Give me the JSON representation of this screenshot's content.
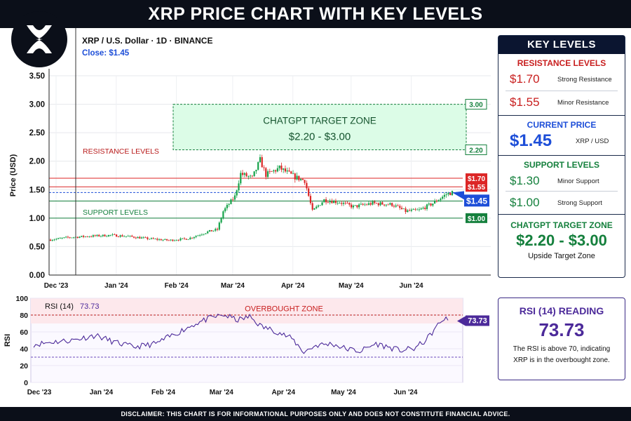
{
  "header": {
    "title": "XRP PRICE CHART WITH KEY LEVELS",
    "logo_icon": "xrp-logo-icon"
  },
  "chart_info": {
    "symbol_line": "XRP / U.S. Dollar · 1D · BINANCE",
    "close_line": "Close: $1.45"
  },
  "colors": {
    "bull": "#16a34a",
    "bear": "#dc2626",
    "resistance": "#dc2626",
    "support": "#15803d",
    "current": "#1d4ed8",
    "rsi": "#4c2a9a",
    "target_fill": "#dcfce7",
    "navy": "#0b1530"
  },
  "chart_data": [
    {
      "type": "candlestick",
      "ylabel": "Price (USD)",
      "ylim": [
        0,
        3.5
      ],
      "yticks": [
        "0.00",
        "0.50",
        "1.00",
        "1.50",
        "2.00",
        "2.50",
        "3.00",
        "3.50"
      ],
      "xticks": [
        "Dec '23",
        "Jan '24",
        "Feb '24",
        "Mar '24",
        "Apr '24",
        "May '24",
        "Jun '24"
      ],
      "x_range": [
        "2023-12-01",
        "2024-06-25"
      ],
      "grid": true,
      "price_path": [
        {
          "date": "2023-12-01",
          "price": 0.62
        },
        {
          "date": "2023-12-10",
          "price": 0.66
        },
        {
          "date": "2023-12-20",
          "price": 0.68
        },
        {
          "date": "2024-01-01",
          "price": 0.7
        },
        {
          "date": "2024-01-10",
          "price": 0.68
        },
        {
          "date": "2024-01-20",
          "price": 0.64
        },
        {
          "date": "2024-01-31",
          "price": 0.61
        },
        {
          "date": "2024-02-10",
          "price": 0.64
        },
        {
          "date": "2024-02-20",
          "price": 0.76
        },
        {
          "date": "2024-02-25",
          "price": 0.8
        },
        {
          "date": "2024-02-28",
          "price": 1.12
        },
        {
          "date": "2024-03-05",
          "price": 1.38
        },
        {
          "date": "2024-03-08",
          "price": 1.78
        },
        {
          "date": "2024-03-14",
          "price": 1.7
        },
        {
          "date": "2024-03-18",
          "price": 2.02
        },
        {
          "date": "2024-03-21",
          "price": 1.76
        },
        {
          "date": "2024-03-28",
          "price": 1.88
        },
        {
          "date": "2024-04-05",
          "price": 1.72
        },
        {
          "date": "2024-04-10",
          "price": 1.66
        },
        {
          "date": "2024-04-14",
          "price": 1.12
        },
        {
          "date": "2024-04-20",
          "price": 1.32
        },
        {
          "date": "2024-04-28",
          "price": 1.28
        },
        {
          "date": "2024-05-05",
          "price": 1.2
        },
        {
          "date": "2024-05-15",
          "price": 1.26
        },
        {
          "date": "2024-05-25",
          "price": 1.24
        },
        {
          "date": "2024-06-01",
          "price": 1.12
        },
        {
          "date": "2024-06-08",
          "price": 1.14
        },
        {
          "date": "2024-06-15",
          "price": 1.26
        },
        {
          "date": "2024-06-22",
          "price": 1.42
        },
        {
          "date": "2024-06-25",
          "price": 1.45
        }
      ],
      "lines": [
        {
          "name": "Strong Resistance",
          "value": 1.7,
          "label": "$1.70"
        },
        {
          "name": "Minor Resistance",
          "value": 1.55,
          "label": "$1.55"
        },
        {
          "name": "Current Price",
          "value": 1.45,
          "label": "$1.45"
        },
        {
          "name": "Minor Support",
          "value": 1.3
        },
        {
          "name": "Strong Support",
          "value": 1.0,
          "label": "$1.00"
        }
      ],
      "target_zone": {
        "low": 2.2,
        "high": 3.0,
        "title": "CHATGPT TARGET ZONE",
        "range": "$2.20 - $3.00",
        "low_label": "2.20",
        "high_label": "3.00"
      },
      "annotations": {
        "resistance": "RESISTANCE LEVELS",
        "support": "SUPPORT LEVELS"
      }
    },
    {
      "type": "line",
      "title": "RSI (14)",
      "value_label": "73.73",
      "ylabel": "RSI",
      "ylim": [
        0,
        100
      ],
      "yticks": [
        "0",
        "20",
        "40",
        "60",
        "80",
        "100"
      ],
      "overbought": {
        "from": 70,
        "to": 100,
        "label": "OVERBOUGHT ZONE"
      },
      "oversold_line": 30,
      "xticks": [
        "Dec '23",
        "Jan '24",
        "Feb '24",
        "Mar '24",
        "Apr '24",
        "May '24",
        "Jun '24"
      ],
      "rsi_path": [
        {
          "date": "2023-12-01",
          "rsi": 45
        },
        {
          "date": "2023-12-10",
          "rsi": 48
        },
        {
          "date": "2023-12-20",
          "rsi": 50
        },
        {
          "date": "2024-01-01",
          "rsi": 56
        },
        {
          "date": "2024-01-10",
          "rsi": 48
        },
        {
          "date": "2024-01-20",
          "rsi": 42
        },
        {
          "date": "2024-01-31",
          "rsi": 46
        },
        {
          "date": "2024-02-10",
          "rsi": 58
        },
        {
          "date": "2024-02-20",
          "rsi": 70
        },
        {
          "date": "2024-02-28",
          "rsi": 77
        },
        {
          "date": "2024-03-05",
          "rsi": 80
        },
        {
          "date": "2024-03-12",
          "rsi": 74
        },
        {
          "date": "2024-03-18",
          "rsi": 78
        },
        {
          "date": "2024-03-24",
          "rsi": 66
        },
        {
          "date": "2024-03-30",
          "rsi": 62
        },
        {
          "date": "2024-04-08",
          "rsi": 52
        },
        {
          "date": "2024-04-14",
          "rsi": 36
        },
        {
          "date": "2024-04-20",
          "rsi": 44
        },
        {
          "date": "2024-04-28",
          "rsi": 46
        },
        {
          "date": "2024-05-05",
          "rsi": 40
        },
        {
          "date": "2024-05-12",
          "rsi": 37
        },
        {
          "date": "2024-05-20",
          "rsi": 46
        },
        {
          "date": "2024-05-26",
          "rsi": 42
        },
        {
          "date": "2024-06-01",
          "rsi": 38
        },
        {
          "date": "2024-06-08",
          "rsi": 40
        },
        {
          "date": "2024-06-14",
          "rsi": 50
        },
        {
          "date": "2024-06-20",
          "rsi": 68
        },
        {
          "date": "2024-06-23",
          "rsi": 76
        },
        {
          "date": "2024-06-25",
          "rsi": 73.73
        }
      ]
    }
  ],
  "key_levels": {
    "title": "KEY LEVELS",
    "resistance_title": "RESISTANCE LEVELS",
    "resistance": [
      {
        "value": "$1.70",
        "desc": "Strong Resistance"
      },
      {
        "value": "$1.55",
        "desc": "Minor Resistance"
      }
    ],
    "current_title": "CURRENT PRICE",
    "current_value": "$1.45",
    "current_pair": "XRP / USD",
    "support_title": "SUPPORT LEVELS",
    "support": [
      {
        "value": "$1.30",
        "desc": "Minor Support"
      },
      {
        "value": "$1.00",
        "desc": "Strong Support"
      }
    ],
    "target_title": "CHATGPT TARGET ZONE",
    "target_value": "$2.20 - $3.00",
    "target_desc": "Upside Target Zone"
  },
  "rsi_box": {
    "title": "RSI (14) READING",
    "value": "73.73",
    "line1": "The RSI is above 70, indicating",
    "line2": "XRP is in the overbought zone."
  },
  "disclaimer": "DISCLAIMER: THIS CHART IS FOR INFORMATIONAL PURPOSES ONLY AND DOES NOT CONSTITUTE FINANCIAL ADVICE."
}
